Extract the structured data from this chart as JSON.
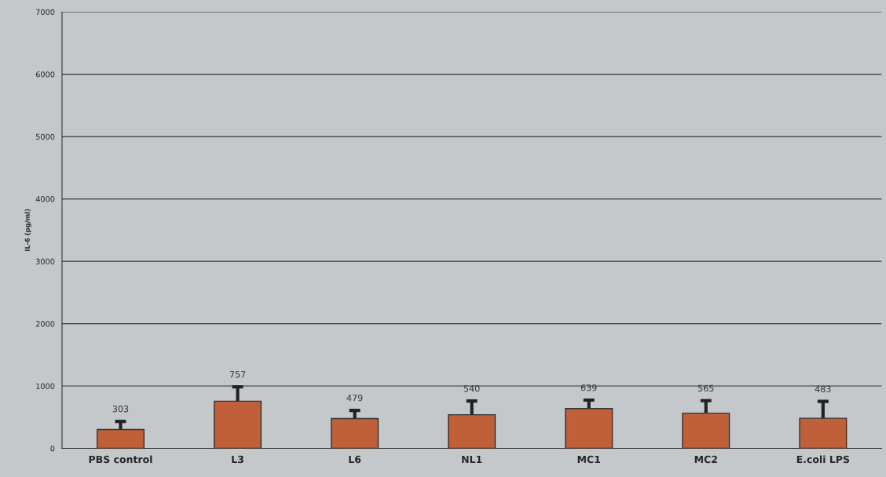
{
  "chart_data": {
    "type": "bar",
    "ylabel": "IL-6 (pg/ml)",
    "categories": [
      "PBS control",
      "L3",
      "L6",
      "NL1",
      "MC1",
      "MC2",
      "E.coli LPS"
    ],
    "values": [
      303,
      757,
      479,
      540,
      639,
      565,
      483
    ],
    "errors": [
      130,
      230,
      130,
      220,
      135,
      200,
      270
    ],
    "color": "#c0603a",
    "data_labels": true,
    "grid": "y",
    "ylim": [
      0,
      7000
    ],
    "yticks": [
      0,
      1000,
      2000,
      3000,
      4000,
      5000,
      6000,
      7000
    ]
  }
}
